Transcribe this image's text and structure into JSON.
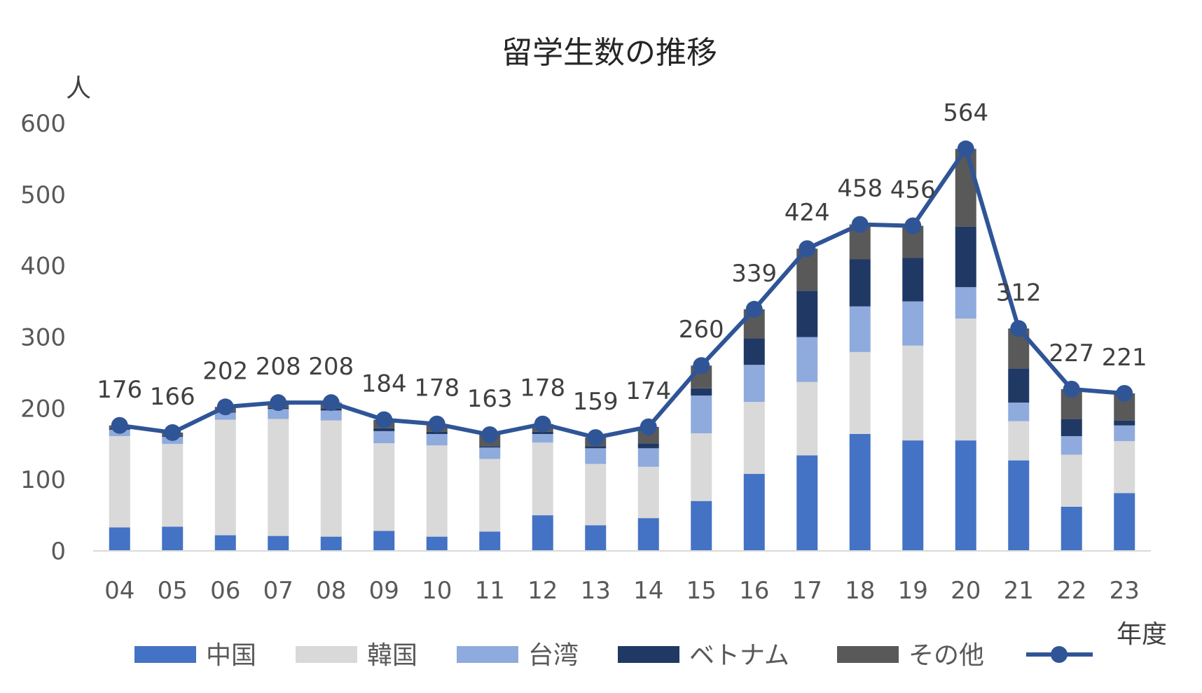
{
  "chart_data": {
    "type": "bar",
    "stacked": true,
    "title": "留学生数の推移",
    "ylabel": "人",
    "xlabel": "年度",
    "ylim": [
      0,
      600
    ],
    "yticks": [
      0,
      100,
      200,
      300,
      400,
      500,
      600
    ],
    "grid": false,
    "legend_position": "bottom",
    "categories": [
      "04",
      "05",
      "06",
      "07",
      "08",
      "09",
      "10",
      "11",
      "12",
      "13",
      "14",
      "15",
      "16",
      "17",
      "18",
      "19",
      "20",
      "21",
      "22",
      "23"
    ],
    "series": [
      {
        "name": "中国",
        "color": "#4472C4",
        "values": [
          33,
          34,
          22,
          21,
          20,
          28,
          20,
          27,
          50,
          36,
          46,
          70,
          108,
          134,
          164,
          155,
          155,
          127,
          62,
          81
        ]
      },
      {
        "name": "韓国",
        "color": "#D9D9D9",
        "values": [
          128,
          116,
          162,
          164,
          163,
          123,
          128,
          102,
          102,
          86,
          72,
          95,
          101,
          103,
          115,
          133,
          171,
          55,
          73,
          73
        ]
      },
      {
        "name": "台湾",
        "color": "#8FAADC",
        "values": [
          9,
          10,
          10,
          14,
          14,
          17,
          16,
          16,
          12,
          22,
          26,
          53,
          52,
          63,
          64,
          62,
          44,
          26,
          26,
          22
        ]
      },
      {
        "name": "ベトナム",
        "color": "#203864",
        "values": [
          2,
          1,
          1,
          2,
          3,
          4,
          3,
          2,
          3,
          3,
          7,
          10,
          37,
          65,
          66,
          61,
          85,
          48,
          24,
          7
        ]
      },
      {
        "name": "その他",
        "color": "#595959",
        "values": [
          4,
          5,
          7,
          7,
          8,
          12,
          11,
          16,
          11,
          12,
          23,
          32,
          41,
          59,
          49,
          45,
          109,
          56,
          42,
          38
        ]
      }
    ],
    "line": {
      "color": "#2F5597",
      "values": [
        176,
        166,
        202,
        208,
        208,
        184,
        178,
        163,
        178,
        159,
        174,
        260,
        339,
        424,
        458,
        456,
        564,
        312,
        227,
        221
      ]
    }
  }
}
